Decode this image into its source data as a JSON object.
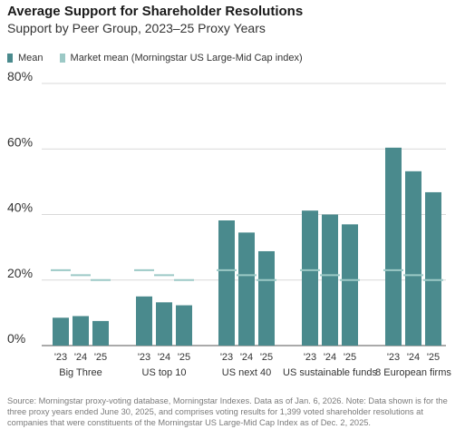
{
  "chart_data": {
    "type": "bar",
    "title": "Average Support for Shareholder Resolutions",
    "subtitle": "Support by Peer Group, 2023–25 Proxy Years",
    "legend": [
      {
        "label": "Mean",
        "color": "#4a8a8d"
      },
      {
        "label": "Market mean (Morningstar US Large-Mid Cap index)",
        "color": "#9cc9c6"
      }
    ],
    "legend_position": "top-left",
    "y_ticks": [
      "0%",
      "20%",
      "40%",
      "60%",
      "80%"
    ],
    "ylim": [
      0,
      80
    ],
    "years": [
      "'23",
      "'24",
      "'25"
    ],
    "groups": [
      {
        "name": "Big Three",
        "values": [
          8.5,
          9.0,
          7.5
        ]
      },
      {
        "name": "US top 10",
        "values": [
          15.0,
          13.2,
          12.3
        ]
      },
      {
        "name": "US next 40",
        "values": [
          38.2,
          34.5,
          28.8
        ]
      },
      {
        "name": "US sustainable funds",
        "values": [
          41.2,
          40.0,
          37.0
        ]
      },
      {
        "name": "8 European firms",
        "values": [
          60.4,
          53.2,
          46.8
        ]
      }
    ],
    "market_mean": [
      23.0,
      21.5,
      20.0
    ],
    "gridlines": true
  },
  "footnote": "Source: Morningstar proxy-voting database, Morningstar Indexes. Data as of Jan. 6, 2026. Note: Data shown is for the three proxy years ended June 30, 2025, and comprises voting results for 1,399 voted shareholder resolutions at companies that were constituents of the Morningstar US Large-Mid Cap Index as of Dec. 2, 2025."
}
